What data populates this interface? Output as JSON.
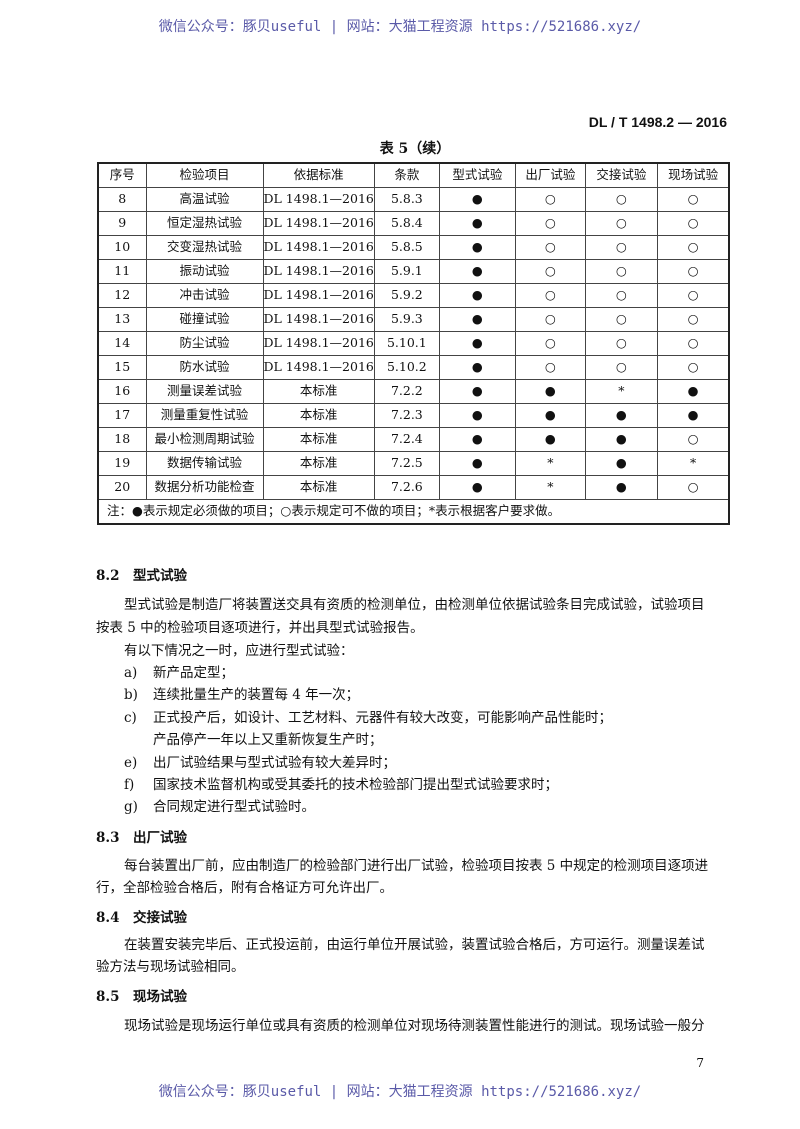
{
  "watermark": "微信公众号：豚贝useful | 网站：大猫工程资源 https://521686.xyz/",
  "standard_number": "DL / T 1498.2 — 2016",
  "table": {
    "title": "表 5（续）",
    "headers": [
      "序号",
      "检验项目",
      "依据标准",
      "条款",
      "型式试验",
      "出厂试验",
      "交接试验",
      "现场试验"
    ],
    "rows": [
      [
        "8",
        "高温试验",
        "DL 1498.1—2016",
        "5.8.3",
        "●",
        "○",
        "○",
        "○"
      ],
      [
        "9",
        "恒定湿热试验",
        "DL 1498.1—2016",
        "5.8.4",
        "●",
        "○",
        "○",
        "○"
      ],
      [
        "10",
        "交变湿热试验",
        "DL 1498.1—2016",
        "5.8.5",
        "●",
        "○",
        "○",
        "○"
      ],
      [
        "11",
        "振动试验",
        "DL 1498.1—2016",
        "5.9.1",
        "●",
        "○",
        "○",
        "○"
      ],
      [
        "12",
        "冲击试验",
        "DL 1498.1—2016",
        "5.9.2",
        "●",
        "○",
        "○",
        "○"
      ],
      [
        "13",
        "碰撞试验",
        "DL 1498.1—2016",
        "5.9.3",
        "●",
        "○",
        "○",
        "○"
      ],
      [
        "14",
        "防尘试验",
        "DL 1498.1—2016",
        "5.10.1",
        "●",
        "○",
        "○",
        "○"
      ],
      [
        "15",
        "防水试验",
        "DL 1498.1—2016",
        "5.10.2",
        "●",
        "○",
        "○",
        "○"
      ],
      [
        "16",
        "测量误差试验",
        "本标准",
        "7.2.2",
        "●",
        "●",
        "*",
        "●"
      ],
      [
        "17",
        "测量重复性试验",
        "本标准",
        "7.2.3",
        "●",
        "●",
        "●",
        "●"
      ],
      [
        "18",
        "最小检测周期试验",
        "本标准",
        "7.2.4",
        "●",
        "●",
        "●",
        "○"
      ],
      [
        "19",
        "数据传输试验",
        "本标准",
        "7.2.5",
        "●",
        "*",
        "●",
        "*"
      ],
      [
        "20",
        "数据分析功能检查",
        "本标准",
        "7.2.6",
        "●",
        "*",
        "●",
        "○"
      ]
    ],
    "note": "注：●表示规定必须做的项目；○表示规定可不做的项目；*表示根据客户要求做。"
  },
  "sections": {
    "s82": {
      "heading": "8.2　型式试验",
      "p1": "型式试验是制造厂将装置送交具有资质的检测单位，由检测单位依据试验条目完成试验，试验项目",
      "p2": "按表 5 中的检验项目逐项进行，并出具型式试验报告。",
      "p3": "有以下情况之一时，应进行型式试验：",
      "items": [
        [
          "a)",
          "新产品定型；"
        ],
        [
          "b)",
          "连续批量生产的装置每 4 年一次；"
        ],
        [
          "c)",
          "正式投产后，如设计、工艺材料、元器件有较大改变，可能影响产品性能时；"
        ],
        [
          "",
          "产品停产一年以上又重新恢复生产时；"
        ],
        [
          "e)",
          "出厂试验结果与型式试验有较大差异时；"
        ],
        [
          "f)",
          "国家技术监督机构或受其委托的技术检验部门提出型式试验要求时；"
        ],
        [
          "g)",
          "合同规定进行型式试验时。"
        ]
      ]
    },
    "s83": {
      "heading": "8.3　出厂试验",
      "p1": "每台装置出厂前，应由制造厂的检验部门进行出厂试验，检验项目按表 5 中规定的检测项目逐项进",
      "p2": "行，全部检验合格后，附有合格证方可允许出厂。"
    },
    "s84": {
      "heading": "8.4　交接试验",
      "p1": "在装置安装完毕后、正式投运前，由运行单位开展试验，装置试验合格后，方可运行。测量误差试",
      "p2": "验方法与现场试验相同。"
    },
    "s85": {
      "heading": "8.5　现场试验",
      "p1": "现场试验是现场运行单位或具有资质的检测单位对现场待测装置性能进行的测试。现场试验一般分"
    }
  },
  "page_number": "7"
}
